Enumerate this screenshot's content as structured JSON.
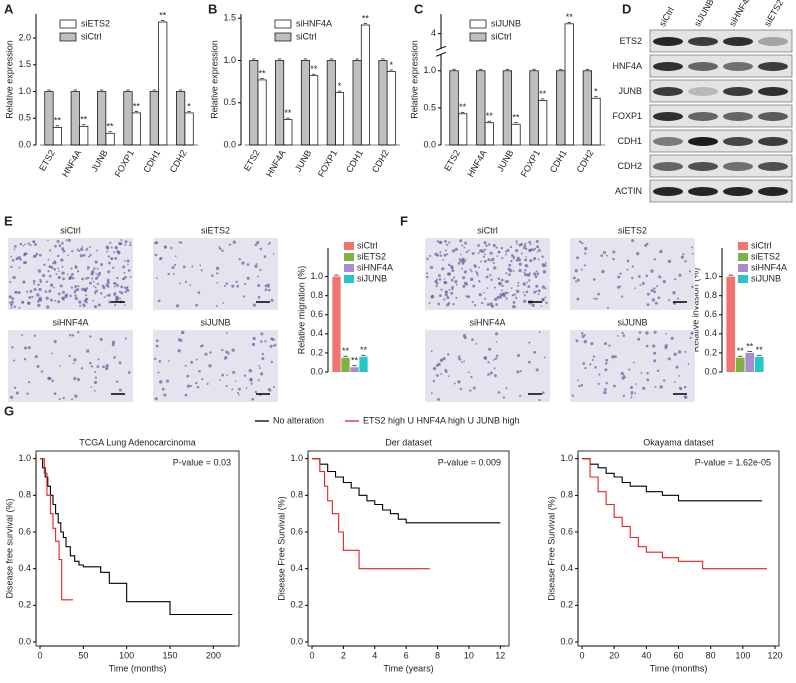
{
  "panel_letters": [
    "A",
    "B",
    "C",
    "D",
    "E",
    "F",
    "G"
  ],
  "chart_data": [
    {
      "type": "bar",
      "ylabel": "Relative expression",
      "categories": [
        "ETS2",
        "HNF4A",
        "JUNB",
        "FOXP1",
        "CDH1",
        "CDH2"
      ],
      "series": [
        {
          "name": "siETS2",
          "color": "#ffffff",
          "values": [
            0.33,
            0.35,
            0.22,
            0.6,
            2.3,
            0.6
          ],
          "significance": [
            "**",
            "**",
            "**",
            "**",
            "**",
            "*"
          ]
        },
        {
          "name": "siCtrl",
          "color": "#bfbfbf",
          "values": [
            1,
            1,
            1,
            1,
            1,
            1
          ]
        }
      ],
      "ylim": [
        0,
        2.45
      ],
      "yticks": [
        {
          "value": 0,
          "label": "0.0"
        },
        0.5,
        {
          "value": 1,
          "label": "1.0"
        },
        1.5,
        {
          "value": 2,
          "label": "2.0"
        }
      ]
    },
    {
      "type": "bar",
      "ylabel": "Relative expression",
      "categories": [
        "ETS2",
        "HNF4A",
        "JUNB",
        "FOXP1",
        "CDH1",
        "CDH2"
      ],
      "series": [
        {
          "name": "siHNF4A",
          "color": "#ffffff",
          "values": [
            0.77,
            0.3,
            0.82,
            0.62,
            1.42,
            0.87
          ],
          "significance": [
            "**",
            "**",
            "**",
            "*",
            "**",
            "*"
          ]
        },
        {
          "name": "siCtrl",
          "color": "#bfbfbf",
          "values": [
            1,
            1,
            1,
            1,
            1,
            1
          ]
        }
      ],
      "ylim": [
        0,
        1.55
      ],
      "yticks": [
        {
          "value": 0,
          "label": "0.0"
        },
        0.5,
        {
          "value": 1,
          "label": "1.0"
        },
        1.5
      ]
    },
    {
      "type": "bar",
      "ylabel": "Relative expression",
      "categories": [
        "ETS2",
        "HNF4A",
        "JUNB",
        "FOXP1",
        "CDH1",
        "CDH2"
      ],
      "series": [
        {
          "name": "siJUNB",
          "color": "#ffffff",
          "values": [
            0.42,
            0.3,
            0.28,
            0.6,
            4.3,
            0.63
          ],
          "significance": [
            "**",
            "**",
            "**",
            "**",
            "**",
            "*"
          ]
        },
        {
          "name": "siCtrl",
          "color": "#bfbfbf",
          "values": [
            1,
            1,
            1,
            1,
            1,
            1
          ]
        }
      ],
      "ylim": [
        0,
        4.6
      ],
      "ybreak": [
        1.2,
        3.6
      ],
      "yticks": [
        {
          "value": 0,
          "label": "0.0"
        },
        0.5,
        {
          "value": 1,
          "label": "1.0"
        },
        4
      ]
    },
    {
      "type": "bar",
      "ylabel": "Relative migration (%)",
      "categories": [
        "siCtrl",
        "siETS2",
        "siHNF4A",
        "siJUNB"
      ],
      "colors": [
        "#f07470",
        "#7cb342",
        "#a98bd4",
        "#26c6c6"
      ],
      "values": [
        1,
        0.15,
        0.05,
        0.16
      ],
      "significance": [
        null,
        "**",
        "**",
        "**"
      ],
      "ylim": [
        0,
        1.3
      ],
      "yticks": [
        {
          "value": 0,
          "label": "0.0"
        },
        0.2,
        0.4,
        0.6,
        0.8,
        {
          "value": 1,
          "label": "1.0"
        }
      ]
    },
    {
      "type": "bar",
      "ylabel": "Relative invasion (%)",
      "categories": [
        "siCtrl",
        "siETS2",
        "siHNF4A",
        "siJUNB"
      ],
      "colors": [
        "#f07470",
        "#7cb342",
        "#a98bd4",
        "#26c6c6"
      ],
      "values": [
        1,
        0.15,
        0.2,
        0.16
      ],
      "significance": [
        null,
        "**",
        "**",
        "**"
      ],
      "ylim": [
        0,
        1.3
      ],
      "yticks": [
        {
          "value": 0,
          "label": "0.0"
        },
        0.2,
        0.4,
        0.6,
        0.8,
        {
          "value": 1,
          "label": "1.0"
        }
      ]
    },
    {
      "type": "step",
      "title": "TCGA Lung Adenocarcinoma",
      "annotation": "P-value = 0.03",
      "xlabel": "Time (months)",
      "ylabel": "Disease free survival (%)",
      "xlim": [
        0,
        225
      ],
      "xticks": [
        0,
        50,
        100,
        150,
        200
      ],
      "ylim": [
        0,
        1.02
      ],
      "yticks": [
        {
          "value": 0,
          "label": "0.0"
        },
        0.2,
        0.4,
        0.6,
        0.8,
        {
          "value": 1,
          "label": "1.0"
        }
      ],
      "series": [
        {
          "color": "#000000",
          "x": [
            0,
            3,
            6,
            9,
            12,
            15,
            18,
            21,
            24,
            27,
            30,
            35,
            40,
            45,
            50,
            60,
            70,
            80,
            90,
            100,
            150,
            210,
            222
          ],
          "values": [
            1,
            0.95,
            0.9,
            0.85,
            0.8,
            0.75,
            0.7,
            0.65,
            0.6,
            0.57,
            0.52,
            0.47,
            0.44,
            0.42,
            0.41,
            0.41,
            0.38,
            0.32,
            0.32,
            0.22,
            0.15,
            0.15,
            0.15
          ]
        },
        {
          "color": "#e32222",
          "x": [
            0,
            5,
            8,
            12,
            15,
            18,
            22,
            25,
            30,
            38
          ],
          "values": [
            1,
            0.92,
            0.8,
            0.7,
            0.62,
            0.55,
            0.45,
            0.23,
            0.23,
            0.23
          ]
        }
      ]
    },
    {
      "type": "step",
      "title": "Der dataset",
      "annotation": "P-value = 0.009",
      "xlabel": "Time (years)",
      "ylabel": "Disease Free Survival (%)",
      "xlim": [
        0,
        12.3
      ],
      "xticks": [
        0,
        2,
        4,
        6,
        8,
        10,
        12
      ],
      "ylim": [
        0,
        1.02
      ],
      "yticks": [
        {
          "value": 0,
          "label": "0.0"
        },
        0.2,
        0.4,
        0.6,
        0.8,
        {
          "value": 1,
          "label": "1.0"
        }
      ],
      "series": [
        {
          "color": "#000000",
          "x": [
            0,
            0.5,
            1,
            1.5,
            2,
            2.5,
            3,
            3.5,
            4,
            4.5,
            5,
            5.5,
            6,
            8,
            10,
            12
          ],
          "values": [
            1,
            0.97,
            0.93,
            0.9,
            0.87,
            0.84,
            0.8,
            0.77,
            0.75,
            0.72,
            0.7,
            0.67,
            0.65,
            0.65,
            0.65,
            0.65
          ]
        },
        {
          "color": "#e32222",
          "x": [
            0,
            0.5,
            0.8,
            1,
            1.3,
            1.7,
            2,
            3,
            7.5
          ],
          "values": [
            1,
            0.93,
            0.85,
            0.77,
            0.7,
            0.6,
            0.5,
            0.4,
            0.4
          ]
        }
      ]
    },
    {
      "type": "step",
      "title": "Okayama dataset",
      "annotation": "P-value = 1.62e-05",
      "xlabel": "Time (months)",
      "ylabel": "Disease Free Survival (%)",
      "xlim": [
        0,
        120
      ],
      "xticks": [
        0,
        20,
        40,
        60,
        80,
        100,
        120
      ],
      "ylim": [
        0,
        1.02
      ],
      "yticks": [
        {
          "value": 0,
          "label": "0.0"
        },
        0.2,
        0.4,
        0.6,
        0.8,
        {
          "value": 1,
          "label": "1.0"
        }
      ],
      "series": [
        {
          "color": "#000000",
          "x": [
            0,
            5,
            10,
            15,
            20,
            25,
            30,
            40,
            50,
            60,
            70,
            112
          ],
          "values": [
            1,
            0.97,
            0.95,
            0.92,
            0.9,
            0.87,
            0.85,
            0.82,
            0.8,
            0.77,
            0.77,
            0.77
          ]
        },
        {
          "color": "#e32222",
          "x": [
            0,
            5,
            10,
            15,
            20,
            25,
            30,
            35,
            40,
            50,
            60,
            75,
            115
          ],
          "values": [
            1,
            0.9,
            0.82,
            0.75,
            0.68,
            0.63,
            0.57,
            0.52,
            0.49,
            0.46,
            0.44,
            0.4,
            0.4
          ]
        }
      ]
    }
  ],
  "survival_legend": [
    {
      "name": "No alteration",
      "color": "#000000"
    },
    {
      "name": "ETS2 high U HNF4A high U JUNB high",
      "color": "#e32222"
    }
  ],
  "blot": {
    "lanes": [
      "siCtrl",
      "siJUNB",
      "siHNF4A",
      "siETS2"
    ],
    "rows": [
      "ETS2",
      "HNF4A",
      "JUNB",
      "FOXP1",
      "CDH1",
      "CDH2",
      "ACTIN"
    ]
  },
  "micrographs": {
    "E": [
      "siCtrl",
      "siETS2",
      "siHNF4A",
      "siJUNB"
    ],
    "F": [
      "siCtrl",
      "siETS2",
      "siHNF4A",
      "siJUNB"
    ]
  }
}
